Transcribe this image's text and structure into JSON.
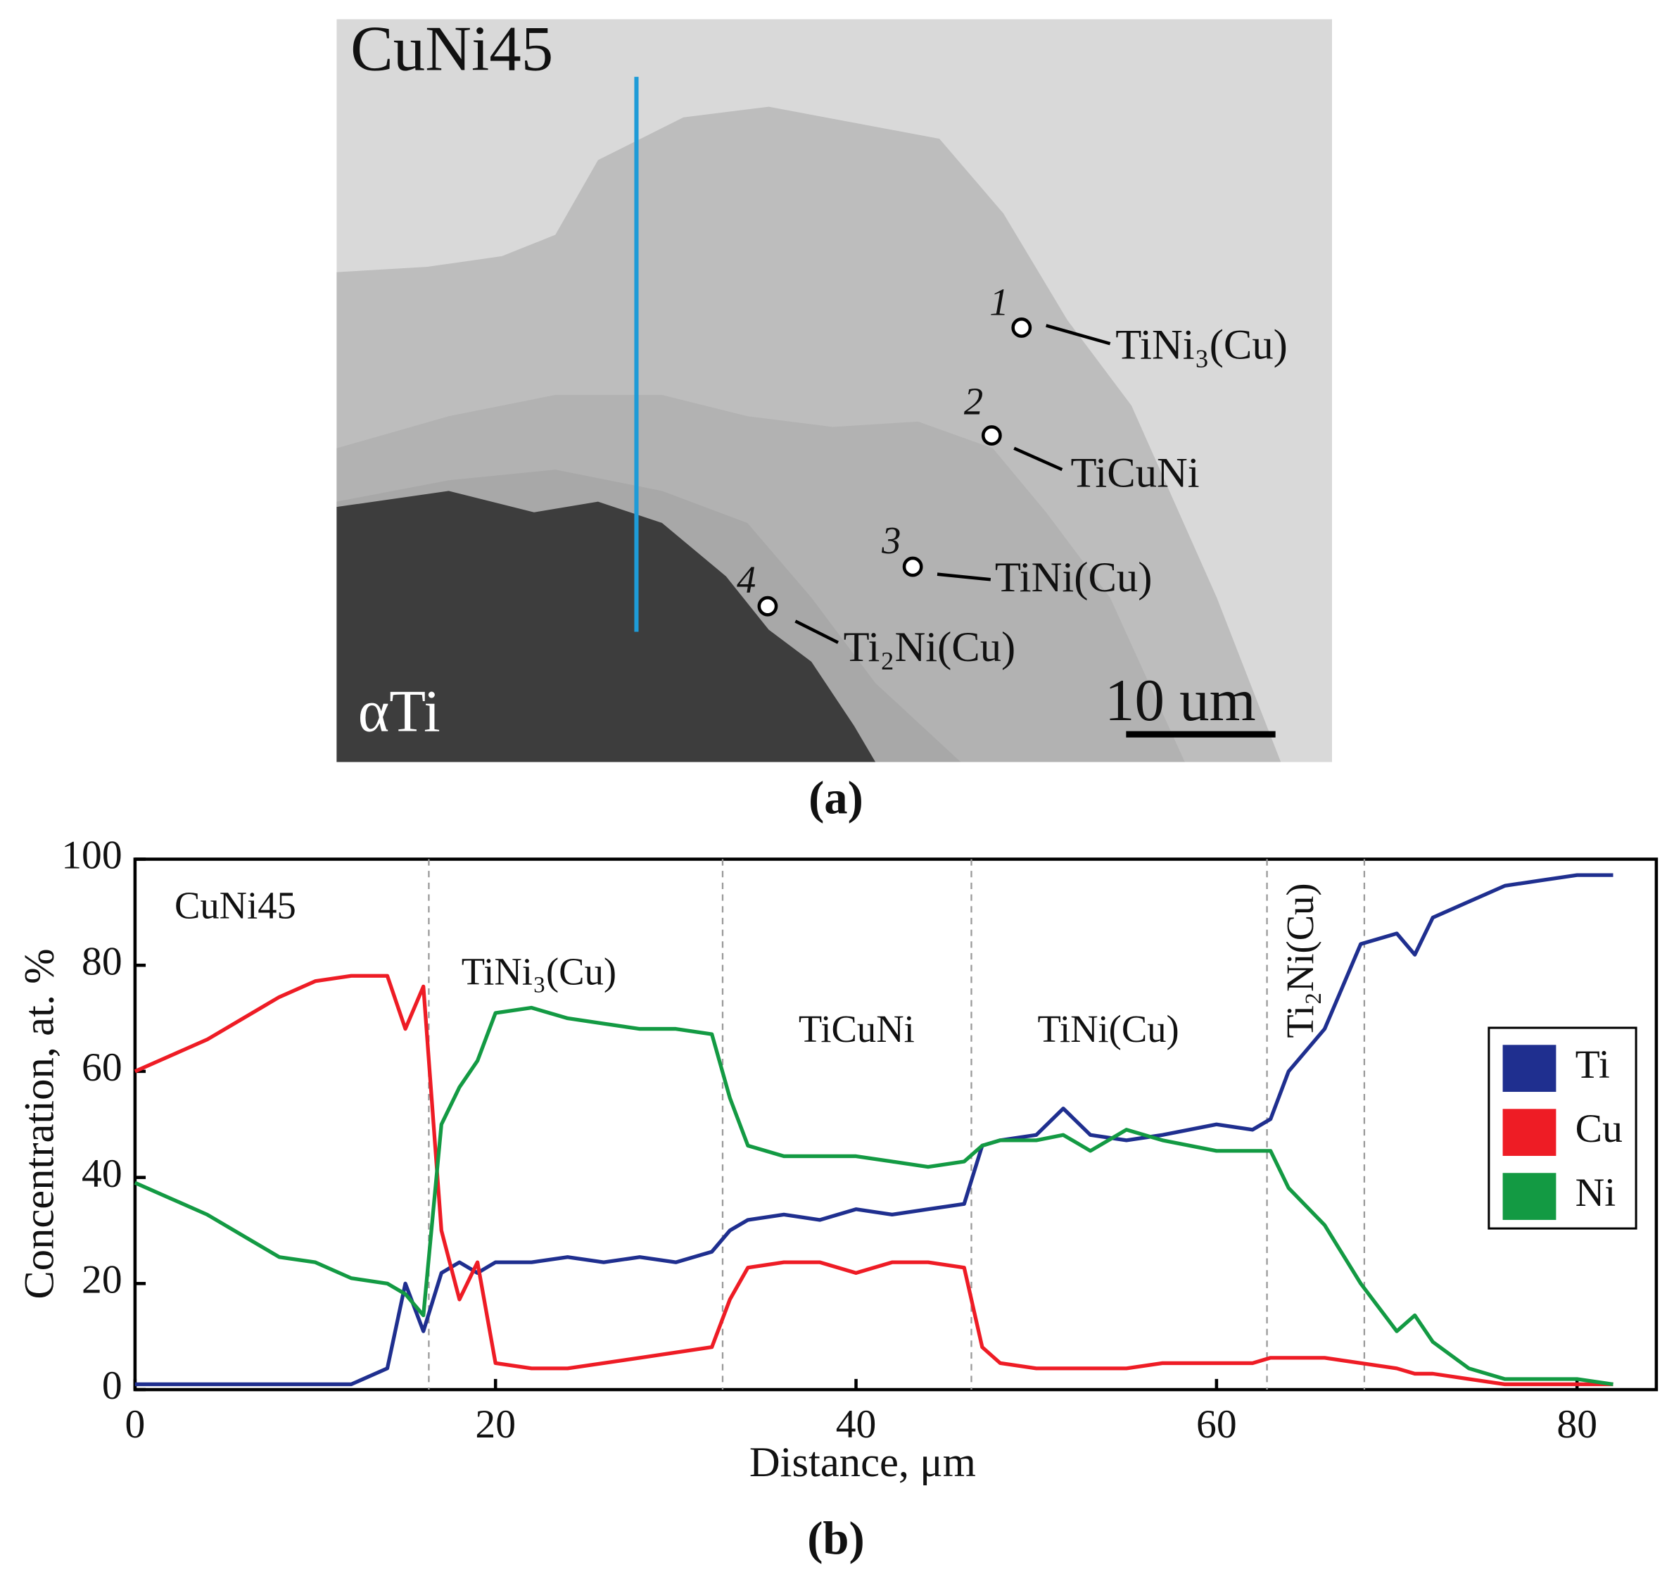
{
  "micrograph": {
    "caption": "(a)",
    "base_label": "CuNi45",
    "substrate_label": "αTi",
    "scale_label": "10 um",
    "points": [
      {
        "number": "1",
        "phase": "TiNi₃(Cu)"
      },
      {
        "number": "2",
        "phase": "TiCuNi"
      },
      {
        "number": "3",
        "phase": "TiNi(Cu)"
      },
      {
        "number": "4",
        "phase": "Ti₂Ni(Cu)"
      }
    ]
  },
  "chart_data": {
    "type": "line",
    "caption": "(b)",
    "x_label": "Distance, μm",
    "y_label": "Concentration, at. %",
    "xlim": [
      0,
      84.4
    ],
    "ylim": [
      0,
      100
    ],
    "xticks": [
      0,
      20,
      40,
      60,
      80
    ],
    "yticks": [
      0,
      20,
      40,
      60,
      80,
      100
    ],
    "boundaries": [
      16.3,
      32.6,
      46.4,
      62.8,
      68.2
    ],
    "annotations": [
      "CuNi45",
      "TiNi₃(Cu)",
      "TiCuNi",
      "TiNi(Cu)",
      "Ti₂Ni(Cu)"
    ],
    "legend": "right",
    "x": [
      0,
      2,
      4,
      6,
      8,
      10,
      12,
      14,
      15,
      16,
      17,
      18,
      19,
      20,
      22,
      24,
      26,
      28,
      30,
      32,
      33,
      34,
      36,
      38,
      40,
      42,
      44,
      46,
      47,
      48,
      50,
      51.5,
      53,
      55,
      57,
      60,
      62,
      63,
      64,
      66,
      68,
      70,
      71,
      72,
      74,
      76,
      78,
      80,
      82
    ],
    "series": [
      {
        "name": "Ti",
        "color": "#1f2f8f",
        "values": [
          1,
          1,
          1,
          1,
          1,
          1,
          1,
          4,
          20,
          11,
          22,
          24,
          22,
          24,
          24,
          25,
          24,
          25,
          24,
          26,
          30,
          32,
          33,
          32,
          34,
          33,
          34,
          35,
          46,
          47,
          48,
          53,
          48,
          47,
          48,
          50,
          49,
          51,
          60,
          68,
          84,
          86,
          82,
          89,
          92,
          95,
          96,
          97,
          97
        ]
      },
      {
        "name": "Cu",
        "color": "#ee1c25",
        "values": [
          60,
          63,
          66,
          70,
          74,
          77,
          78,
          78,
          68,
          76,
          30,
          17,
          24,
          5,
          4,
          4,
          5,
          6,
          7,
          8,
          17,
          23,
          24,
          24,
          22,
          24,
          24,
          23,
          8,
          5,
          4,
          4,
          4,
          4,
          5,
          5,
          5,
          6,
          6,
          6,
          5,
          4,
          3,
          3,
          2,
          1,
          1,
          1,
          1
        ]
      },
      {
        "name": "Ni",
        "color": "#139a43",
        "values": [
          39,
          36,
          33,
          29,
          25,
          24,
          21,
          20,
          18,
          14,
          50,
          57,
          62,
          71,
          72,
          70,
          69,
          68,
          68,
          67,
          55,
          46,
          44,
          44,
          44,
          43,
          42,
          43,
          46,
          47,
          47,
          48,
          45,
          49,
          47,
          45,
          45,
          45,
          38,
          31,
          20,
          11,
          14,
          9,
          4,
          2,
          2,
          2,
          1
        ]
      }
    ]
  }
}
